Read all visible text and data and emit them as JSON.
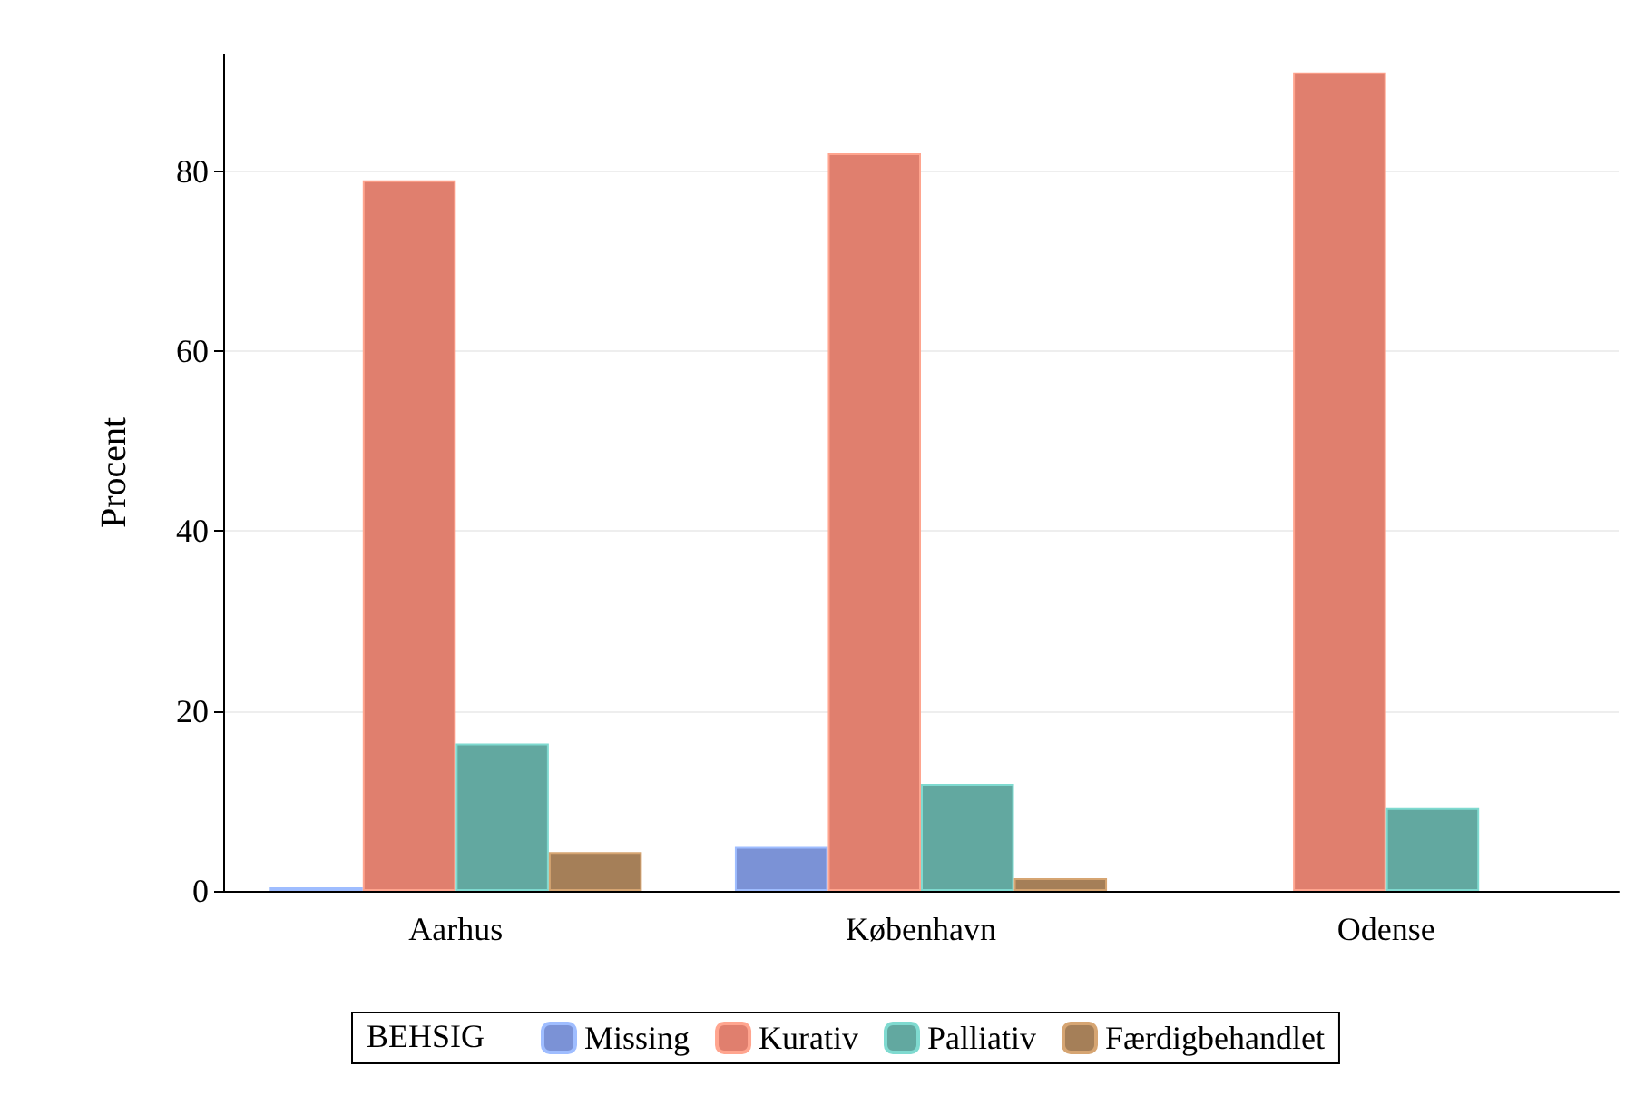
{
  "chart_data": {
    "type": "bar",
    "ylabel": "Procent",
    "legend_title": "BEHSIG",
    "categories": [
      "Aarhus",
      "København",
      "Odense"
    ],
    "series": [
      {
        "name": "Missing",
        "color": "#7b92d6",
        "values": [
          0.4,
          4.9,
          null
        ]
      },
      {
        "name": "Kurativ",
        "color": "#e07f6e",
        "values": [
          79,
          82,
          91
        ]
      },
      {
        "name": "Palliativ",
        "color": "#62a8a0",
        "values": [
          16.4,
          11.9,
          9.2
        ]
      },
      {
        "name": "Færdigbehandlet",
        "color": "#a57f58",
        "values": [
          4.3,
          1.4,
          null
        ]
      }
    ],
    "ylim": [
      0,
      93
    ],
    "yticks": [
      0,
      20,
      40,
      60,
      80
    ],
    "grid": "y",
    "legend": "bottom"
  }
}
